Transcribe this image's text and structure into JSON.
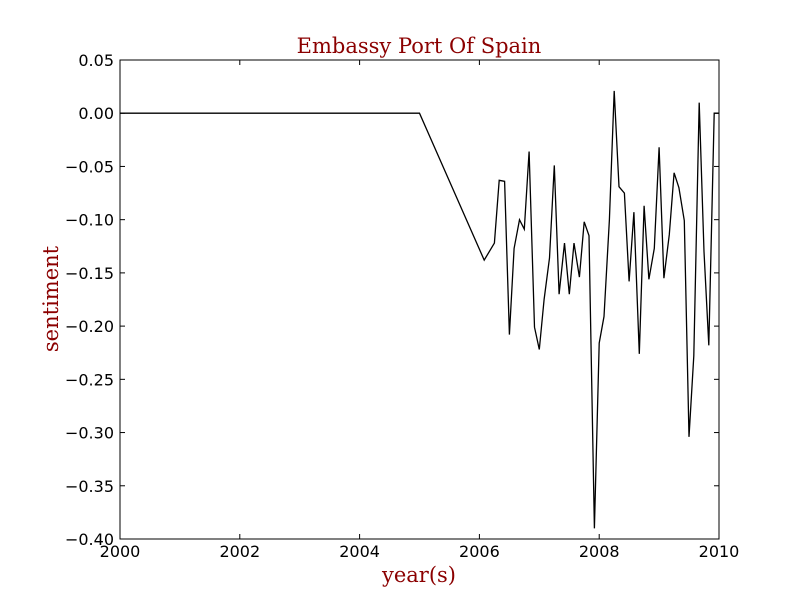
{
  "chart_data": {
    "type": "line",
    "title": "Embassy Port Of Spain",
    "xlabel": "year(s)",
    "ylabel": "sentiment",
    "xlim": [
      2000,
      2010
    ],
    "ylim": [
      -0.4,
      0.05
    ],
    "grid": false,
    "x_ticks": [
      "2000",
      "2002",
      "2004",
      "2006",
      "2008",
      "2010"
    ],
    "y_ticks": [
      "0.05",
      "0.00",
      "−0.05",
      "−0.10",
      "−0.15",
      "−0.20",
      "−0.25",
      "−0.30",
      "−0.35",
      "−0.40"
    ],
    "line_color": "#000000",
    "text_color": "#8b0000",
    "series": [
      {
        "x": [
          2000.0,
          2005.0,
          2006.08,
          2006.25,
          2006.33,
          2006.42,
          2006.5,
          2006.58,
          2006.67,
          2006.75,
          2006.83,
          2006.92,
          2007.0,
          2007.08,
          2007.17,
          2007.25,
          2007.33,
          2007.42,
          2007.5,
          2007.58,
          2007.67,
          2007.75,
          2007.83,
          2007.92,
          2008.0,
          2008.08,
          2008.17,
          2008.25,
          2008.33,
          2008.42,
          2008.5,
          2008.58,
          2008.67,
          2008.75,
          2008.83,
          2008.92,
          2009.0,
          2009.08,
          2009.17,
          2009.25,
          2009.33,
          2009.42,
          2009.5,
          2009.58,
          2009.67,
          2009.75,
          2009.83,
          2009.92,
          2010.0
        ],
        "y": [
          0.0,
          0.0,
          -0.138,
          -0.122,
          -0.063,
          -0.064,
          -0.208,
          -0.127,
          -0.1,
          -0.109,
          -0.036,
          -0.201,
          -0.222,
          -0.175,
          -0.136,
          -0.049,
          -0.17,
          -0.122,
          -0.17,
          -0.122,
          -0.154,
          -0.102,
          -0.115,
          -0.39,
          -0.216,
          -0.191,
          -0.1,
          0.021,
          -0.069,
          -0.075,
          -0.158,
          -0.093,
          -0.226,
          -0.087,
          -0.156,
          -0.127,
          -0.032,
          -0.155,
          -0.114,
          -0.056,
          -0.07,
          -0.101,
          -0.304,
          -0.228,
          0.01,
          -0.13,
          -0.218,
          0.0,
          0.0
        ]
      }
    ]
  }
}
